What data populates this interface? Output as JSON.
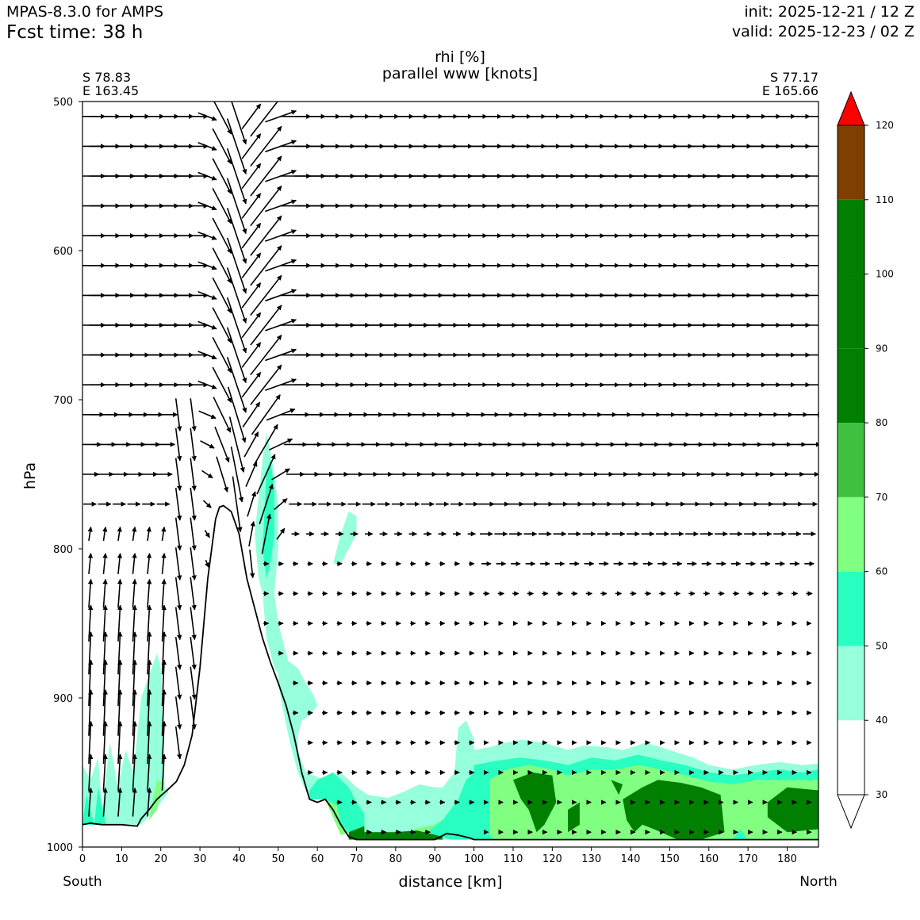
{
  "header": {
    "model": "MPAS-8.3.0 for AMPS",
    "fcst_time": "Fcst time:   38 h",
    "init": "init: 2025-12-21 / 12 Z",
    "valid": "valid: 2025-12-23 / 02 Z"
  },
  "endpoints": {
    "left_lat": "S 78.83",
    "left_lon": "E 163.45",
    "right_lat": "S 77.17",
    "right_lon": "E 165.66",
    "left_dir": "South",
    "right_dir": "North"
  },
  "chart_data": {
    "type": "heatmap",
    "title": "rhi [%]",
    "subtitle": "parallel www [knots]",
    "xlabel": "distance [km]",
    "ylabel": "hPa",
    "xlim": [
      0,
      188
    ],
    "ylim": [
      1000,
      500
    ],
    "y_inverted": true,
    "x_ticks": [
      0,
      10,
      20,
      30,
      40,
      50,
      60,
      70,
      80,
      90,
      100,
      110,
      120,
      130,
      140,
      150,
      160,
      170,
      180
    ],
    "y_ticks": [
      500,
      600,
      700,
      800,
      900,
      1000
    ],
    "colorbar": {
      "levels": [
        30,
        40,
        50,
        60,
        70,
        80,
        90,
        100,
        110,
        120
      ],
      "colors": [
        "#ffffff",
        "#96ffdc",
        "#28ffc0",
        "#80ff80",
        "#40c040",
        "#007f00",
        "#007f00",
        "#007f00",
        "#7f3f00",
        "#ff0000"
      ],
      "extend": "both"
    },
    "terrain_pressure": {
      "x": [
        0,
        2,
        5,
        10,
        14,
        15,
        17,
        19,
        22,
        24,
        26,
        28,
        30,
        32,
        34,
        35,
        36,
        38,
        40,
        42,
        44,
        46,
        48,
        50,
        52,
        54,
        56,
        58,
        60,
        62,
        64,
        66,
        68,
        70,
        80,
        90,
        93,
        96,
        99,
        100,
        188
      ],
      "p": [
        985,
        984,
        985,
        985,
        986,
        981,
        975,
        968,
        961,
        956,
        945,
        925,
        880,
        820,
        780,
        772,
        771,
        775,
        790,
        820,
        840,
        860,
        876,
        890,
        905,
        925,
        950,
        968,
        970,
        968,
        975,
        985,
        993,
        995,
        995,
        995,
        991,
        992,
        994,
        995,
        995
      ]
    },
    "rhi_regions": [
      {
        "level": "40-50",
        "desc": "near surface 0-20 km, plumes up to ~870 hPa near 20 km"
      },
      {
        "level": "40-50",
        "desc": "column near 47-50 km from ~720 hPa to surface"
      },
      {
        "level": "40-50",
        "desc": "patch near 65-70 km at 780-810 hPa"
      },
      {
        "level": "40-60",
        "desc": "lee slope 50-100 km below ~900 hPa"
      },
      {
        "level": "50-90",
        "desc": "low layer 100-188 km between ~935 and 995 hPa"
      }
    ],
    "wind_vectors": {
      "pressure_levels": [
        510,
        530,
        550,
        570,
        590,
        610,
        630,
        650,
        670,
        690,
        710,
        730,
        750,
        770,
        790,
        810,
        830,
        850,
        870,
        890,
        910,
        930,
        950,
        970,
        990
      ],
      "x_spacing_km": 3.75,
      "pattern": "westerly flow aloft, strong descending lee wave near 35-45 km, weak flow below 800 hPa downstream"
    }
  }
}
